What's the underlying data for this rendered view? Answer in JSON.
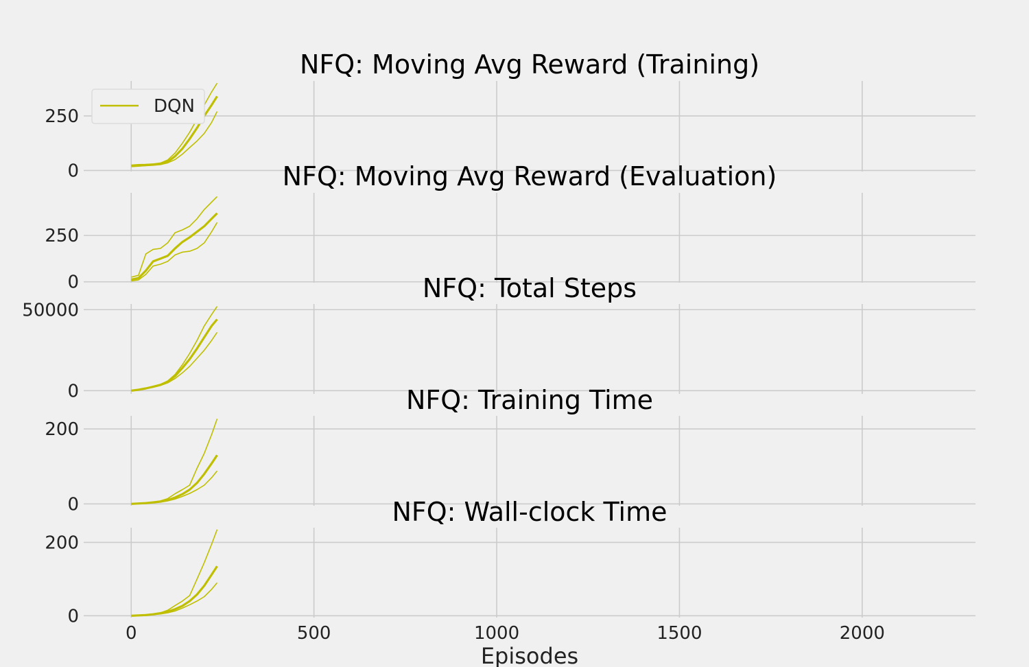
{
  "chart_data": [
    {
      "type": "line",
      "title": "NFQ: Moving Avg Reward (Training)",
      "xlim": [
        -130,
        2310
      ],
      "ylim": [
        -5,
        410
      ],
      "yticks": [
        0,
        250
      ],
      "series": [
        {
          "name": "DQN",
          "role": "mean",
          "x": [
            0,
            20,
            40,
            60,
            80,
            100,
            120,
            140,
            160,
            180,
            200,
            220,
            235
          ],
          "y": [
            20,
            22,
            25,
            27,
            30,
            40,
            65,
            100,
            145,
            195,
            250,
            300,
            340
          ]
        },
        {
          "role": "upper",
          "x": [
            0,
            20,
            40,
            60,
            80,
            100,
            120,
            140,
            160,
            180,
            200,
            220,
            235
          ],
          "y": [
            25,
            27,
            28,
            30,
            34,
            48,
            80,
            125,
            175,
            235,
            300,
            360,
            400
          ]
        },
        {
          "role": "lower",
          "x": [
            0,
            20,
            40,
            60,
            80,
            100,
            120,
            140,
            160,
            180,
            200,
            220,
            235
          ],
          "y": [
            18,
            20,
            22,
            24,
            27,
            35,
            50,
            75,
            105,
            135,
            170,
            220,
            270
          ]
        }
      ],
      "legend": {
        "entries": [
          "DQN"
        ],
        "loc": "upper left"
      }
    },
    {
      "type": "line",
      "title": "NFQ: Moving Avg Reward (Evaluation)",
      "xlim": [
        -130,
        2310
      ],
      "ylim": [
        -5,
        480
      ],
      "yticks": [
        0,
        250
      ],
      "series": [
        {
          "role": "mean",
          "x": [
            0,
            20,
            40,
            60,
            80,
            100,
            120,
            140,
            160,
            180,
            200,
            220,
            235
          ],
          "y": [
            12,
            20,
            60,
            110,
            125,
            140,
            180,
            215,
            240,
            270,
            300,
            340,
            370
          ]
        },
        {
          "role": "upper",
          "x": [
            0,
            20,
            40,
            60,
            80,
            100,
            120,
            140,
            160,
            180,
            200,
            220,
            235
          ],
          "y": [
            25,
            35,
            150,
            175,
            180,
            210,
            265,
            280,
            300,
            340,
            390,
            430,
            460
          ]
        },
        {
          "role": "lower",
          "x": [
            0,
            20,
            40,
            60,
            80,
            100,
            120,
            140,
            160,
            180,
            200,
            220,
            235
          ],
          "y": [
            5,
            10,
            40,
            85,
            95,
            110,
            145,
            160,
            165,
            180,
            210,
            270,
            320
          ]
        }
      ]
    },
    {
      "type": "line",
      "title": "NFQ: Total Steps",
      "xlim": [
        -130,
        2310
      ],
      "ylim": [
        -2000,
        53500
      ],
      "yticks": [
        0,
        50000
      ],
      "series": [
        {
          "role": "mean",
          "x": [
            0,
            20,
            40,
            60,
            80,
            100,
            120,
            140,
            160,
            180,
            200,
            220,
            235
          ],
          "y": [
            0,
            600,
            1400,
            2400,
            3600,
            5500,
            9000,
            14000,
            19500,
            26000,
            33000,
            40000,
            44000
          ]
        },
        {
          "role": "upper",
          "x": [
            0,
            20,
            40,
            60,
            80,
            100,
            120,
            140,
            160,
            180,
            200,
            220,
            235
          ],
          "y": [
            0,
            700,
            1500,
            2600,
            3900,
            6000,
            10000,
            16000,
            23000,
            31000,
            40000,
            47000,
            52000
          ]
        },
        {
          "role": "lower",
          "x": [
            0,
            20,
            40,
            60,
            80,
            100,
            120,
            140,
            160,
            180,
            200,
            220,
            235
          ],
          "y": [
            0,
            500,
            1200,
            2100,
            3200,
            4800,
            7500,
            11000,
            15000,
            20000,
            25000,
            31000,
            36000
          ]
        }
      ]
    },
    {
      "type": "line",
      "title": "NFQ: Training Time",
      "xlim": [
        -130,
        2310
      ],
      "ylim": [
        -5,
        235
      ],
      "yticks": [
        0,
        200
      ],
      "series": [
        {
          "role": "mean",
          "x": [
            0,
            20,
            40,
            60,
            80,
            100,
            120,
            140,
            160,
            180,
            200,
            220,
            235
          ],
          "y": [
            0,
            1,
            2,
            4,
            6,
            10,
            17,
            26,
            38,
            56,
            80,
            108,
            130
          ]
        },
        {
          "role": "upper",
          "x": [
            0,
            20,
            40,
            60,
            80,
            100,
            120,
            140,
            160,
            180,
            200,
            220,
            235
          ],
          "y": [
            0,
            1.5,
            3,
            5,
            8,
            14,
            27,
            38,
            50,
            95,
            135,
            185,
            227
          ]
        },
        {
          "role": "lower",
          "x": [
            0,
            20,
            40,
            60,
            80,
            100,
            120,
            140,
            160,
            180,
            200,
            220,
            235
          ],
          "y": [
            0,
            1,
            2,
            3,
            5,
            8,
            13,
            20,
            28,
            38,
            50,
            70,
            88
          ]
        }
      ]
    },
    {
      "type": "line",
      "title": "NFQ: Wall-clock Time",
      "xlim": [
        -130,
        2310
      ],
      "ylim": [
        -5,
        240
      ],
      "yticks": [
        0,
        200
      ],
      "xticks": [
        0,
        500,
        1000,
        1500,
        2000
      ],
      "xlabel": "Episodes",
      "series": [
        {
          "role": "mean",
          "x": [
            0,
            20,
            40,
            60,
            80,
            100,
            120,
            140,
            160,
            180,
            200,
            220,
            235
          ],
          "y": [
            0,
            1,
            2,
            4,
            7,
            11,
            18,
            27,
            40,
            58,
            82,
            112,
            135
          ]
        },
        {
          "role": "upper",
          "x": [
            0,
            20,
            40,
            60,
            80,
            100,
            120,
            140,
            160,
            180,
            200,
            220,
            235
          ],
          "y": [
            0,
            1.5,
            3,
            5,
            8,
            15,
            28,
            40,
            55,
            100,
            145,
            195,
            235
          ]
        },
        {
          "role": "lower",
          "x": [
            0,
            20,
            40,
            60,
            80,
            100,
            120,
            140,
            160,
            180,
            200,
            220,
            235
          ],
          "y": [
            0,
            1,
            2,
            3,
            5,
            8,
            13,
            21,
            30,
            40,
            52,
            72,
            90
          ]
        }
      ]
    }
  ],
  "colors": {
    "series": "#bfbf00",
    "background": "#f0f0f0",
    "grid": "#cbcbcb"
  }
}
